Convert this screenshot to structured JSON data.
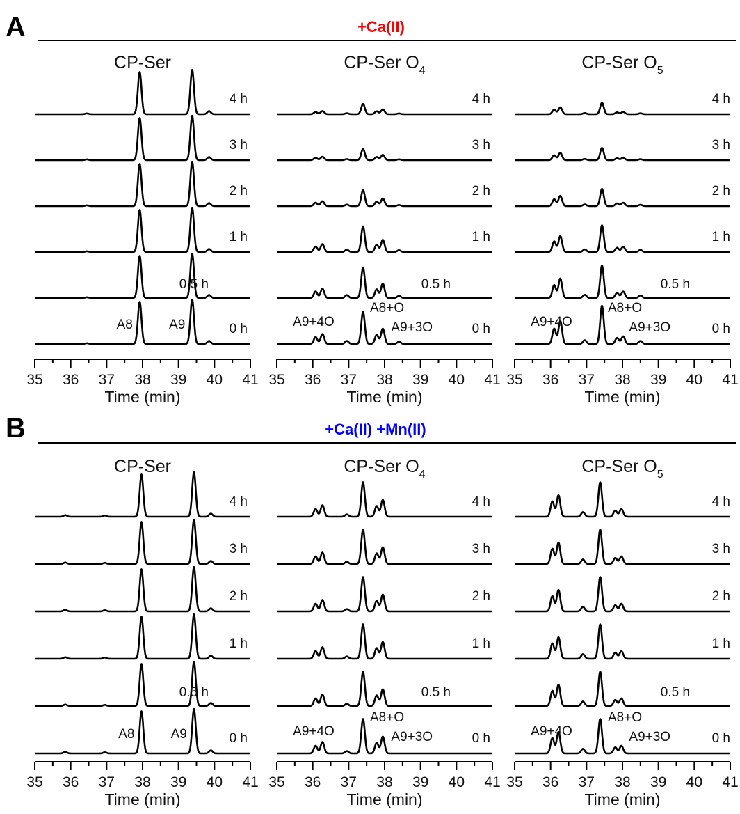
{
  "chart_data": {
    "type": "line",
    "xlim": [
      35,
      41
    ],
    "ticks": [
      35,
      36,
      37,
      38,
      39,
      40,
      41
    ],
    "xlabel": "Time (min)",
    "time_points": [
      "4 h",
      "3 h",
      "2 h",
      "1 h",
      "0.5 h",
      "0 h"
    ],
    "subplot_titles": [
      {
        "pre": "CP-Ser",
        "sub": ""
      },
      {
        "pre": "CP-Ser O",
        "sub": "4"
      },
      {
        "pre": "CP-Ser O",
        "sub": "5"
      }
    ],
    "groups": [
      {
        "letter": "A",
        "condition": "+Ca(II)",
        "condition_color": "#ff0000",
        "panels": [
          {
            "shift": 0,
            "annotations": [
              "A8",
              "A9"
            ],
            "peaks": [
              [
                37.92,
                0.55
              ],
              [
                39.38,
                0.58
              ]
            ],
            "extra_peaks": [
              [
                39.85,
                0.04
              ],
              [
                36.45,
                0.01
              ]
            ],
            "traces": {
              "4 h": 1,
              "3 h": 1,
              "2 h": 1,
              "1 h": 1,
              "0.5 h": 1,
              "0 h": 1
            }
          },
          {
            "shift": 0,
            "annotations": [
              "A9+4O",
              "A8+O",
              "A9+3O"
            ],
            "peaks": [
              [
                36.08,
                0.09
              ],
              [
                36.27,
                0.13
              ],
              [
                36.95,
                0.04
              ],
              [
                37.4,
                0.42
              ],
              [
                37.78,
                0.12
              ],
              [
                37.95,
                0.2
              ],
              [
                38.4,
                0.03
              ]
            ],
            "extra_peaks": [],
            "traces": {
              "4 h": 0.32,
              "3 h": 0.35,
              "2 h": 0.5,
              "1 h": 0.8,
              "0.5 h": 0.95,
              "0 h": 1
            }
          },
          {
            "shift": 0.05,
            "annotations": [
              "A9+4O",
              "A8+O",
              "A9+3O"
            ],
            "peaks": [
              [
                36.05,
                0.2
              ],
              [
                36.22,
                0.3
              ],
              [
                36.9,
                0.05
              ],
              [
                37.38,
                0.5
              ],
              [
                37.8,
                0.08
              ],
              [
                37.97,
                0.1
              ],
              [
                38.45,
                0.04
              ]
            ],
            "extra_peaks": [],
            "traces": {
              "4 h": 0.3,
              "3 h": 0.32,
              "2 h": 0.45,
              "1 h": 0.7,
              "0.5 h": 0.85,
              "0 h": 1
            }
          }
        ]
      },
      {
        "letter": "B",
        "condition": "+Ca(II) +Mn(II)",
        "condition_color": "#0000ff",
        "panels": [
          {
            "shift": 0.05,
            "annotations": [
              "A8",
              "A9"
            ],
            "peaks": [
              [
                37.92,
                0.55
              ],
              [
                39.38,
                0.58
              ]
            ],
            "extra_peaks": [
              [
                39.85,
                0.04
              ],
              [
                35.8,
                0.02
              ],
              [
                36.9,
                0.015
              ]
            ],
            "traces": {
              "4 h": 1,
              "3 h": 1,
              "2 h": 1,
              "1 h": 1,
              "0.5 h": 1,
              "0 h": 1
            }
          },
          {
            "shift": 0,
            "annotations": [
              "A9+4O",
              "A8+O",
              "A9+3O"
            ],
            "peaks": [
              [
                36.08,
                0.1
              ],
              [
                36.27,
                0.15
              ],
              [
                36.95,
                0.03
              ],
              [
                37.4,
                0.45
              ],
              [
                37.78,
                0.14
              ],
              [
                37.95,
                0.22
              ]
            ],
            "extra_peaks": [],
            "traces": {
              "4 h": 1,
              "3 h": 1,
              "2 h": 1,
              "1 h": 1,
              "0.5 h": 1,
              "0 h": 1
            }
          },
          {
            "shift": 0,
            "annotations": [
              "A9+4O",
              "A8+O",
              "A9+3O"
            ],
            "peaks": [
              [
                36.05,
                0.2
              ],
              [
                36.22,
                0.28
              ],
              [
                36.9,
                0.06
              ],
              [
                37.38,
                0.45
              ],
              [
                37.8,
                0.08
              ],
              [
                37.97,
                0.1
              ]
            ],
            "extra_peaks": [],
            "traces": {
              "4 h": 1,
              "3 h": 1,
              "2 h": 1,
              "1 h": 1,
              "0.5 h": 1,
              "0 h": 1
            }
          }
        ]
      }
    ]
  }
}
